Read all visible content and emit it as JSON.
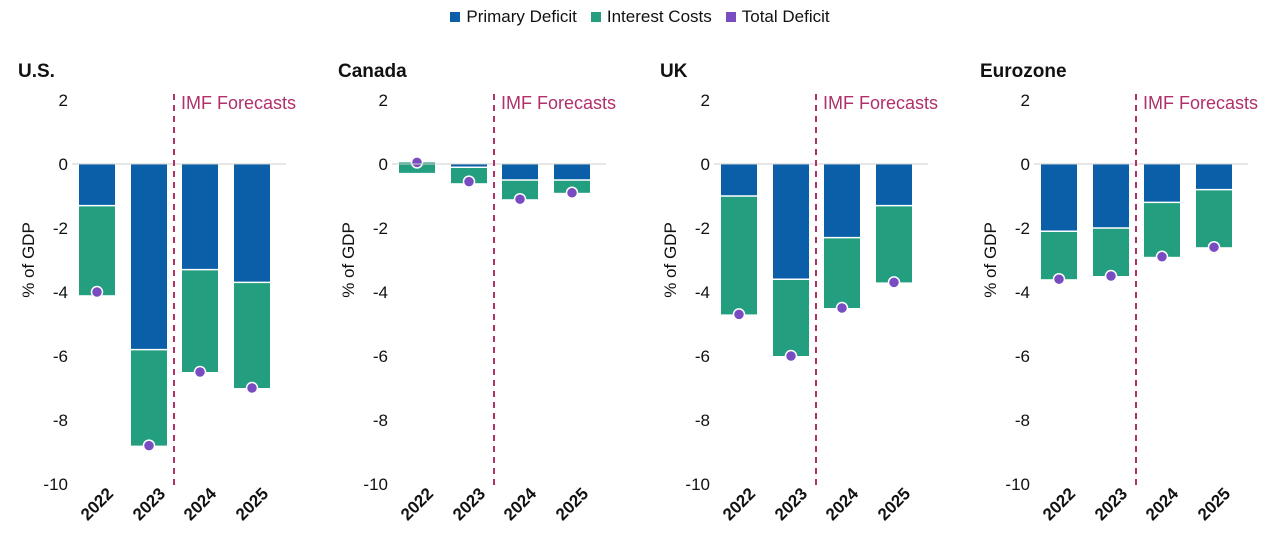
{
  "legend": [
    {
      "label": "Primary Deficit",
      "color": "#0a5fa8"
    },
    {
      "label": "Interest Costs",
      "color": "#239e7f"
    },
    {
      "label": "Total Deficit",
      "color": "#7a4cc2"
    }
  ],
  "colors": {
    "primary": "#0a5fa8",
    "interest": "#239e7f",
    "total": "#7a4cc2",
    "forecast": "#b0306a"
  },
  "chart_data": [
    {
      "type": "bar",
      "title": "U.S.",
      "ylabel": "% of GDP",
      "ylim": [
        -10,
        2
      ],
      "yticks": [
        "2",
        "0",
        "-2",
        "-4",
        "-6",
        "-8",
        "-10"
      ],
      "categories": [
        "2022",
        "2023",
        "2024",
        "2025"
      ],
      "forecast_label": "IMF Forecasts",
      "series": [
        {
          "name": "Primary Deficit",
          "values": [
            -1.3,
            -5.8,
            -3.3,
            -3.7
          ]
        },
        {
          "name": "Interest Costs",
          "values": [
            -2.8,
            -3.0,
            -3.2,
            -3.3
          ]
        },
        {
          "name": "Total Deficit",
          "values": [
            -4.0,
            -8.8,
            -6.5,
            -7.0
          ]
        }
      ]
    },
    {
      "type": "bar",
      "title": "Canada",
      "ylabel": "% of GDP",
      "ylim": [
        -10,
        2
      ],
      "yticks": [
        "2",
        "0",
        "-2",
        "-4",
        "-6",
        "-8",
        "-10"
      ],
      "categories": [
        "2022",
        "2023",
        "2024",
        "2025"
      ],
      "forecast_label": "IMF Forecasts",
      "series": [
        {
          "name": "Primary Deficit",
          "values": [
            -0.3,
            -0.1,
            -0.5,
            -0.5
          ]
        },
        {
          "name": "Interest Costs",
          "values": [
            0.35,
            -0.5,
            -0.6,
            -0.4
          ]
        },
        {
          "name": "Total Deficit",
          "values": [
            0.05,
            -0.55,
            -1.1,
            -0.9
          ]
        }
      ]
    },
    {
      "type": "bar",
      "title": "UK",
      "ylabel": "% of GDP",
      "ylim": [
        -10,
        2
      ],
      "yticks": [
        "2",
        "0",
        "-2",
        "-4",
        "-6",
        "-8",
        "-10"
      ],
      "categories": [
        "2022",
        "2023",
        "2024",
        "2025"
      ],
      "forecast_label": "IMF Forecasts",
      "series": [
        {
          "name": "Primary Deficit",
          "values": [
            -1.0,
            -3.6,
            -2.3,
            -1.3
          ]
        },
        {
          "name": "Interest Costs",
          "values": [
            -3.7,
            -2.4,
            -2.2,
            -2.4
          ]
        },
        {
          "name": "Total Deficit",
          "values": [
            -4.7,
            -6.0,
            -4.5,
            -3.7
          ]
        }
      ]
    },
    {
      "type": "bar",
      "title": "Eurozone",
      "ylabel": "% of GDP",
      "ylim": [
        -10,
        2
      ],
      "yticks": [
        "2",
        "0",
        "-2",
        "-4",
        "-6",
        "-8",
        "-10"
      ],
      "categories": [
        "2022",
        "2023",
        "2024",
        "2025"
      ],
      "forecast_label": "IMF Forecasts",
      "series": [
        {
          "name": "Primary Deficit",
          "values": [
            -2.1,
            -2.0,
            -1.2,
            -0.8
          ]
        },
        {
          "name": "Interest Costs",
          "values": [
            -1.5,
            -1.5,
            -1.7,
            -1.8
          ]
        },
        {
          "name": "Total Deficit",
          "values": [
            -3.6,
            -3.5,
            -2.9,
            -2.6
          ]
        }
      ]
    }
  ]
}
